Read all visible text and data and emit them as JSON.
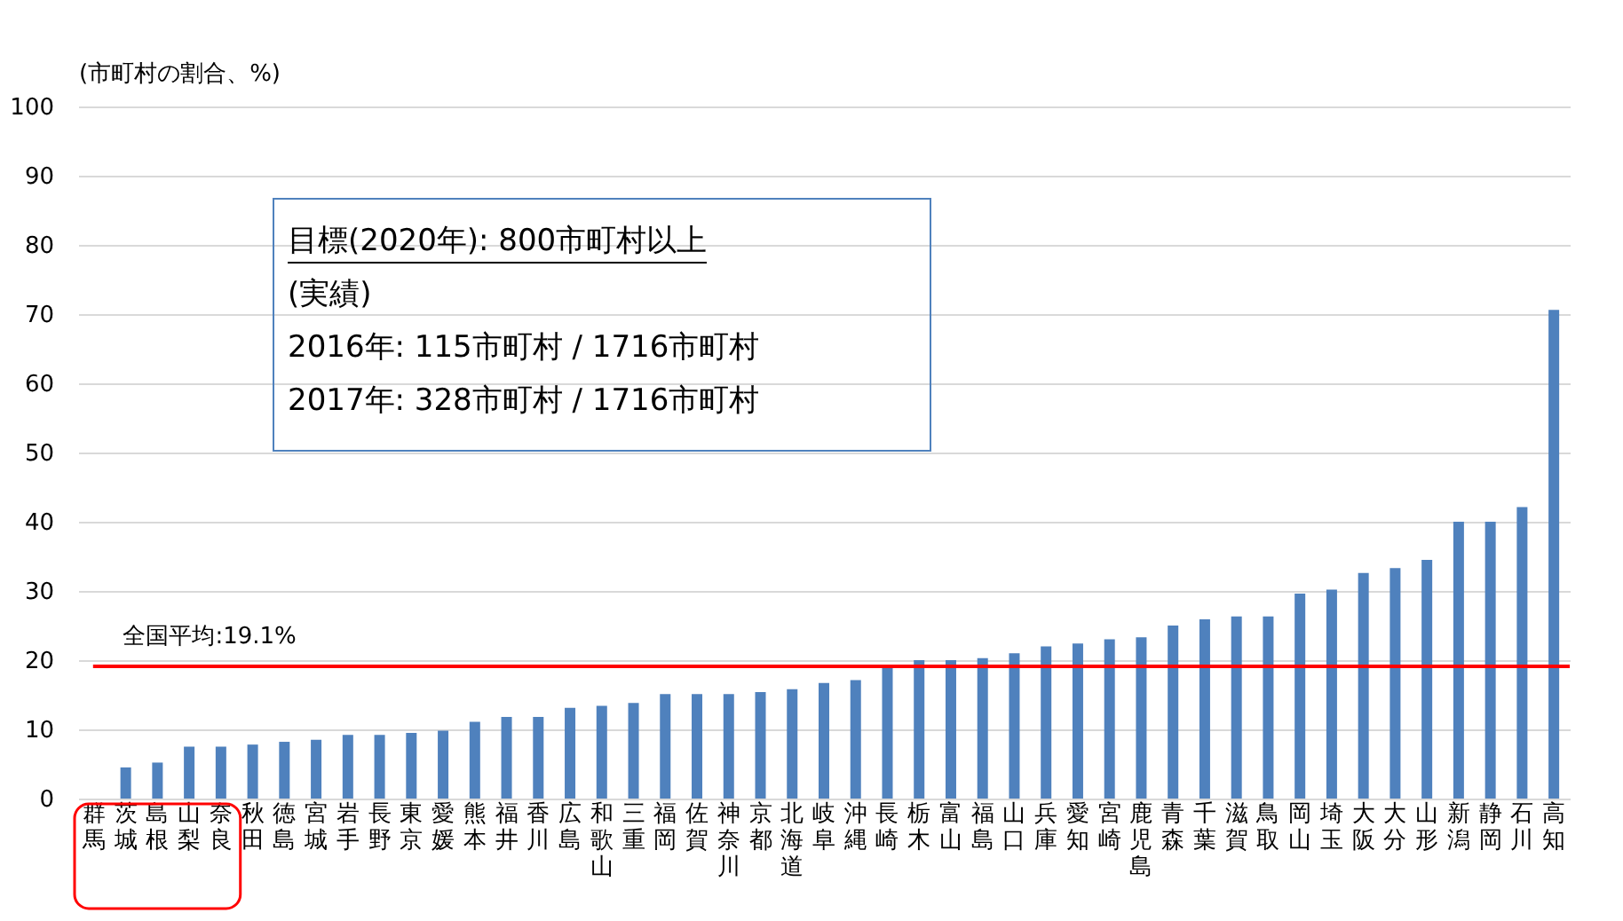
{
  "chart_data": {
    "type": "bar",
    "ylabel": "(市町村の割合、%)",
    "categories": [
      "群馬",
      "茨城",
      "島根",
      "山梨",
      "奈良",
      "秋田",
      "徳島",
      "宮城",
      "岩手",
      "長野",
      "東京",
      "愛媛",
      "熊本",
      "福井",
      "香川",
      "広島",
      "和歌山",
      "三重",
      "福岡",
      "佐賀",
      "神奈川",
      "京都",
      "北海道",
      "岐阜",
      "沖縄",
      "長崎",
      "栃木",
      "富山",
      "福島",
      "山口",
      "兵庫",
      "愛知",
      "宮崎",
      "鹿児島",
      "青森",
      "千葉",
      "滋賀",
      "鳥取",
      "岡山",
      "埼玉",
      "大阪",
      "大分",
      "山形",
      "新潟",
      "静岡",
      "石川",
      "高知"
    ],
    "values": [
      0,
      4.5,
      5.2,
      7.5,
      7.5,
      7.8,
      8.2,
      8.5,
      9.2,
      9.2,
      9.5,
      9.8,
      11.1,
      11.8,
      11.8,
      13.1,
      13.4,
      13.8,
      15.1,
      15.1,
      15.1,
      15.4,
      15.8,
      16.7,
      17.1,
      19.0,
      20.0,
      20.0,
      20.3,
      21.0,
      22.0,
      22.4,
      23.0,
      23.3,
      25.0,
      25.9,
      26.3,
      26.3,
      29.6,
      30.2,
      32.6,
      33.3,
      34.5,
      40.0,
      40.0,
      42.1,
      70.6
    ],
    "color": "#4f81bd",
    "ylim": [
      0,
      100
    ],
    "yticks": [
      0,
      10,
      20,
      30,
      40,
      50,
      60,
      70,
      80,
      90,
      100
    ],
    "grid": "y",
    "ref_lines": [
      {
        "axis": "y",
        "value": 19.1,
        "label": "全国平均:19.1%",
        "color": "#ff0000"
      }
    ],
    "annotations": [
      "目標(2020年): 800市町村以上",
      "(実績)",
      "  2016年: 115市町村 / 1716市町村",
      "  2017年: 328市町村 / 1716市町村"
    ]
  }
}
